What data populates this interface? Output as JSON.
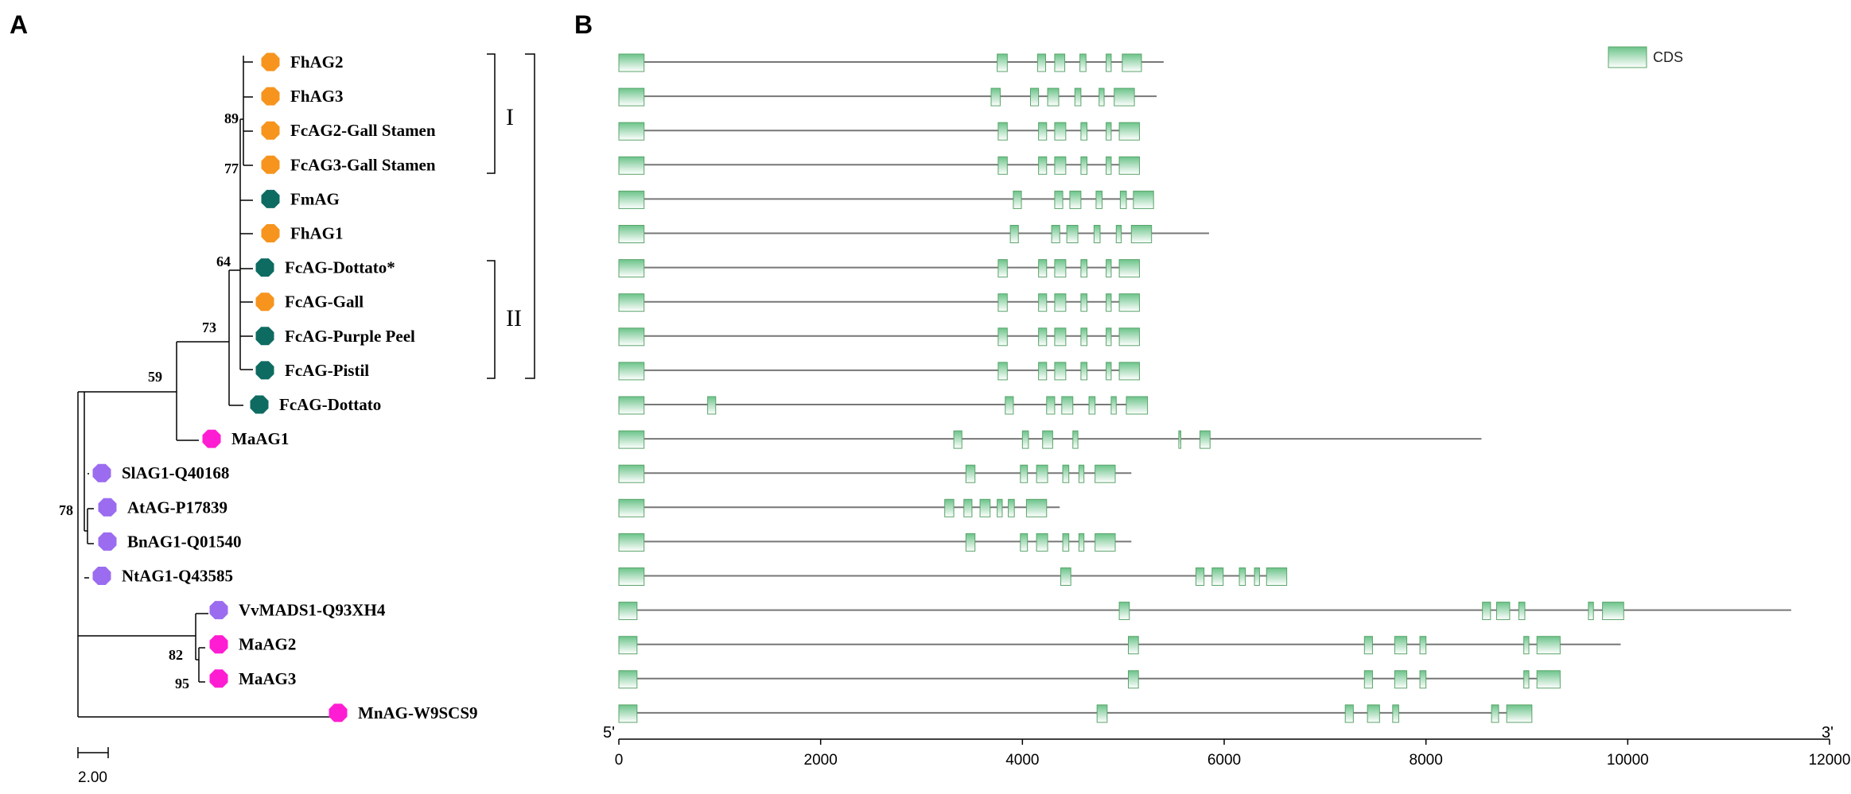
{
  "panels": {
    "a_letter": "A",
    "b_letter": "B"
  },
  "colors": {
    "orange": "#F7941D",
    "teal": "#0E6B62",
    "magenta": "#FF1DD3",
    "purple": "#9B6CF0",
    "cds_dark": "#6CC48A",
    "cds_light": "#FFFFFF",
    "intron": "#777777"
  },
  "tree": {
    "taxa": [
      {
        "name": "FhAG2",
        "color": "orange"
      },
      {
        "name": "FhAG3",
        "color": "orange"
      },
      {
        "name": "FcAG2-Gall Stamen",
        "color": "orange"
      },
      {
        "name": "FcAG3-Gall Stamen",
        "color": "orange"
      },
      {
        "name": "FmAG",
        "color": "teal"
      },
      {
        "name": "FhAG1",
        "color": "orange"
      },
      {
        "name": "FcAG-Dottato*",
        "color": "teal"
      },
      {
        "name": "FcAG-Gall",
        "color": "orange"
      },
      {
        "name": "FcAG-Purple Peel",
        "color": "teal"
      },
      {
        "name": "FcAG-Pistil",
        "color": "teal"
      },
      {
        "name": "FcAG-Dottato",
        "color": "teal"
      },
      {
        "name": "MaAG1",
        "color": "magenta"
      },
      {
        "name": "SlAG1-Q40168",
        "color": "purple"
      },
      {
        "name": "AtAG-P17839",
        "color": "purple"
      },
      {
        "name": "BnAG1-Q01540",
        "color": "purple"
      },
      {
        "name": "NtAG1-Q43585",
        "color": "purple"
      },
      {
        "name": "VvMADS1-Q93XH4",
        "color": "purple"
      },
      {
        "name": "MaAG2",
        "color": "magenta"
      },
      {
        "name": "MaAG3",
        "color": "magenta"
      },
      {
        "name": "MnAG-W9SCS9",
        "color": "magenta"
      }
    ],
    "bootstrap": [
      "89",
      "77",
      "64",
      "73",
      "59",
      "78",
      "82",
      "95"
    ],
    "clades": {
      "one": "I",
      "two": "II"
    },
    "scale_bar_label": "2.00"
  },
  "chart_data": {
    "type": "gene-structure",
    "legend": "CDS",
    "left_end": "5'",
    "right_end": "3'",
    "xlim": [
      0,
      12000
    ],
    "ticks": [
      0,
      2000,
      4000,
      6000,
      8000,
      10000,
      12000
    ],
    "tick_labels": [
      "0",
      "2000",
      "4000",
      "6000",
      "8000",
      "10000",
      "12000"
    ],
    "genes": [
      {
        "name": "FhAG2",
        "length": 5400,
        "cds": [
          [
            0,
            250
          ],
          [
            3750,
            3850
          ],
          [
            4150,
            4230
          ],
          [
            4320,
            4420
          ],
          [
            4570,
            4630
          ],
          [
            4830,
            4880
          ],
          [
            4990,
            5180
          ]
        ]
      },
      {
        "name": "FhAG3",
        "length": 5330,
        "cds": [
          [
            0,
            250
          ],
          [
            3690,
            3780
          ],
          [
            4080,
            4160
          ],
          [
            4250,
            4360
          ],
          [
            4520,
            4580
          ],
          [
            4760,
            4810
          ],
          [
            4910,
            5110
          ]
        ]
      },
      {
        "name": "FcAG2-Gall Stamen",
        "length": 5160,
        "cds": [
          [
            0,
            250
          ],
          [
            3760,
            3850
          ],
          [
            4160,
            4240
          ],
          [
            4320,
            4430
          ],
          [
            4580,
            4640
          ],
          [
            4830,
            4880
          ],
          [
            4960,
            5160
          ]
        ]
      },
      {
        "name": "FcAG3-Gall Stamen",
        "length": 5160,
        "cds": [
          [
            0,
            250
          ],
          [
            3760,
            3850
          ],
          [
            4160,
            4240
          ],
          [
            4320,
            4430
          ],
          [
            4580,
            4640
          ],
          [
            4830,
            4880
          ],
          [
            4960,
            5160
          ]
        ]
      },
      {
        "name": "FmAG",
        "length": 5300,
        "cds": [
          [
            0,
            250
          ],
          [
            3910,
            3990
          ],
          [
            4320,
            4400
          ],
          [
            4470,
            4580
          ],
          [
            4730,
            4790
          ],
          [
            4970,
            5030
          ],
          [
            5100,
            5300
          ]
        ]
      },
      {
        "name": "FhAG1",
        "length": 5850,
        "cds": [
          [
            0,
            250
          ],
          [
            3880,
            3960
          ],
          [
            4290,
            4370
          ],
          [
            4440,
            4550
          ],
          [
            4710,
            4770
          ],
          [
            4930,
            4980
          ],
          [
            5080,
            5280
          ]
        ]
      },
      {
        "name": "FcAG-Dottato*",
        "length": 5160,
        "cds": [
          [
            0,
            250
          ],
          [
            3760,
            3850
          ],
          [
            4160,
            4240
          ],
          [
            4320,
            4430
          ],
          [
            4580,
            4640
          ],
          [
            4830,
            4880
          ],
          [
            4960,
            5160
          ]
        ]
      },
      {
        "name": "FcAG-Gall",
        "length": 5160,
        "cds": [
          [
            0,
            250
          ],
          [
            3760,
            3850
          ],
          [
            4160,
            4240
          ],
          [
            4320,
            4430
          ],
          [
            4580,
            4640
          ],
          [
            4830,
            4880
          ],
          [
            4960,
            5160
          ]
        ]
      },
      {
        "name": "FcAG-Purple Peel",
        "length": 5160,
        "cds": [
          [
            0,
            250
          ],
          [
            3760,
            3850
          ],
          [
            4160,
            4240
          ],
          [
            4320,
            4430
          ],
          [
            4580,
            4640
          ],
          [
            4830,
            4880
          ],
          [
            4960,
            5160
          ]
        ]
      },
      {
        "name": "FcAG-Pistil",
        "length": 5160,
        "cds": [
          [
            0,
            250
          ],
          [
            3760,
            3850
          ],
          [
            4160,
            4240
          ],
          [
            4320,
            4430
          ],
          [
            4580,
            4640
          ],
          [
            4830,
            4880
          ],
          [
            4960,
            5160
          ]
        ]
      },
      {
        "name": "FcAG-Dottato",
        "length": 5240,
        "cds": [
          [
            0,
            250
          ],
          [
            880,
            960
          ],
          [
            3830,
            3910
          ],
          [
            4240,
            4320
          ],
          [
            4390,
            4500
          ],
          [
            4660,
            4720
          ],
          [
            4880,
            4930
          ],
          [
            5030,
            5240
          ]
        ]
      },
      {
        "name": "MaAG1",
        "length": 8550,
        "cds": [
          [
            0,
            250
          ],
          [
            3320,
            3400
          ],
          [
            4000,
            4060
          ],
          [
            4200,
            4300
          ],
          [
            4500,
            4550
          ],
          [
            5550,
            5570
          ],
          [
            5760,
            5860
          ]
        ]
      },
      {
        "name": "SlAG1-Q40168",
        "length": 5080,
        "cds": [
          [
            0,
            250
          ],
          [
            3440,
            3530
          ],
          [
            3980,
            4050
          ],
          [
            4140,
            4250
          ],
          [
            4400,
            4460
          ],
          [
            4560,
            4610
          ],
          [
            4720,
            4920
          ]
        ]
      },
      {
        "name": "AtAG-P17839",
        "length": 4370,
        "cds": [
          [
            0,
            250
          ],
          [
            3230,
            3320
          ],
          [
            3420,
            3500
          ],
          [
            3580,
            3680
          ],
          [
            3750,
            3800
          ],
          [
            3860,
            3920
          ],
          [
            4040,
            4240
          ]
        ]
      },
      {
        "name": "BnAG1-Q01540",
        "length": 5080,
        "cds": [
          [
            0,
            250
          ],
          [
            3440,
            3530
          ],
          [
            3980,
            4050
          ],
          [
            4140,
            4250
          ],
          [
            4400,
            4460
          ],
          [
            4560,
            4610
          ],
          [
            4720,
            4920
          ]
        ]
      },
      {
        "name": "NtAG1-Q43585",
        "length": 6620,
        "cds": [
          [
            0,
            250
          ],
          [
            4380,
            4480
          ],
          [
            5720,
            5800
          ],
          [
            5880,
            5990
          ],
          [
            6150,
            6210
          ],
          [
            6300,
            6350
          ],
          [
            6420,
            6620
          ]
        ]
      },
      {
        "name": "VvMADS1-Q93XH4",
        "length": 11620,
        "cds": [
          [
            0,
            180
          ],
          [
            4960,
            5060
          ],
          [
            8560,
            8640
          ],
          [
            8700,
            8830
          ],
          [
            8920,
            8980
          ],
          [
            9610,
            9660
          ],
          [
            9750,
            9960
          ]
        ]
      },
      {
        "name": "MaAG2",
        "length": 9930,
        "cds": [
          [
            0,
            180
          ],
          [
            5050,
            5150
          ],
          [
            7390,
            7470
          ],
          [
            7690,
            7810
          ],
          [
            7940,
            8000
          ],
          [
            8970,
            9020
          ],
          [
            9100,
            9330
          ]
        ]
      },
      {
        "name": "MaAG3",
        "length": 9330,
        "cds": [
          [
            0,
            180
          ],
          [
            5050,
            5150
          ],
          [
            7390,
            7470
          ],
          [
            7690,
            7810
          ],
          [
            7940,
            8000
          ],
          [
            8970,
            9020
          ],
          [
            9100,
            9330
          ]
        ]
      },
      {
        "name": "MnAG-W9SCS9",
        "length": 9050,
        "cds": [
          [
            0,
            180
          ],
          [
            4740,
            4840
          ],
          [
            7200,
            7280
          ],
          [
            7420,
            7540
          ],
          [
            7670,
            7730
          ],
          [
            8650,
            8720
          ],
          [
            8800,
            9050
          ]
        ]
      }
    ]
  }
}
